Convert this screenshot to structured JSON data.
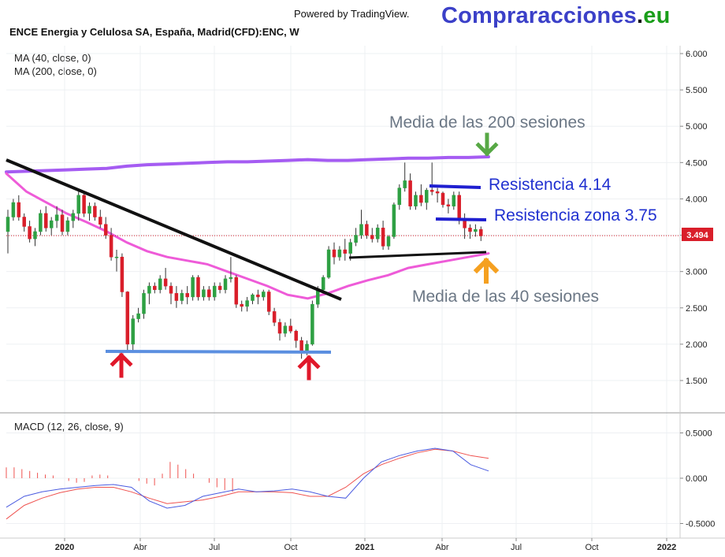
{
  "header": {
    "powered_by": "Powered by TradingView.",
    "brand_main": "Compraracciones",
    "brand_dot": ".",
    "brand_tld": "eu",
    "symbol_title": "ENCE Energia y Celulosa SA, España, Madrid(CFD):ENC, W"
  },
  "indicators": {
    "ma40_label": "MA (40, close, 0)",
    "ma200_label": "MA (200, close, 0)",
    "macd_label": "MACD (12, 26, close, 9)"
  },
  "annotations": {
    "ma200_text": "Media de las 200 sesiones",
    "ma40_text": "Media de las 40 sesiones",
    "res1_text": "Resistencia 4.14",
    "res2_text": "Resistencia zona 3.75"
  },
  "colors": {
    "up": "#2ea043",
    "down": "#d91e2a",
    "ma200": "#a55cf2",
    "ma40": "#ee5bd8",
    "macd_line": "#4a5be0",
    "signal_line": "#ef5350",
    "histogram": "#ef5350",
    "support": "#5b8fe0",
    "resistance": "#1f1fd0",
    "trendline": "#111111",
    "arrow_red": "#e0182a",
    "arrow_green": "#57a845",
    "arrow_orange": "#f5a020",
    "annotation_gray": "#6b7785",
    "annotation_blue": "#2030d0"
  },
  "chart_data": [
    {
      "type": "candlestick",
      "title": "ENCE Energia y Celulosa SA, España, Madrid(CFD):ENC, W",
      "last_price": "3.494",
      "x_tick_labels": [
        "2020",
        "Abr",
        "Jul",
        "Oct",
        "2021",
        "Abr",
        "Jul",
        "Oct",
        "2022"
      ],
      "y_tick_labels": [
        "6.000",
        "5.500",
        "5.000",
        "4.500",
        "4.000",
        "3.500",
        "3.000",
        "2.500",
        "2.000",
        "1.500"
      ],
      "ylim": [
        1.0,
        6.1
      ],
      "grid": true,
      "candles": [
        [
          3.55,
          3.85,
          3.25,
          3.75
        ],
        [
          3.75,
          4.0,
          3.7,
          3.95
        ],
        [
          3.95,
          4.05,
          3.7,
          3.75
        ],
        [
          3.75,
          3.8,
          3.55,
          3.62
        ],
        [
          3.62,
          3.7,
          3.4,
          3.45
        ],
        [
          3.45,
          3.6,
          3.35,
          3.55
        ],
        [
          3.55,
          3.85,
          3.5,
          3.8
        ],
        [
          3.8,
          3.9,
          3.55,
          3.6
        ],
        [
          3.6,
          3.75,
          3.5,
          3.7
        ],
        [
          3.7,
          3.9,
          3.6,
          3.78
        ],
        [
          3.78,
          3.85,
          3.5,
          3.55
        ],
        [
          3.55,
          3.75,
          3.5,
          3.7
        ],
        [
          3.7,
          3.85,
          3.6,
          3.8
        ],
        [
          3.8,
          4.1,
          3.7,
          4.05
        ],
        [
          4.05,
          4.1,
          3.75,
          3.8
        ],
        [
          3.8,
          3.95,
          3.7,
          3.9
        ],
        [
          3.9,
          3.95,
          3.7,
          3.75
        ],
        [
          3.75,
          3.85,
          3.6,
          3.65
        ],
        [
          3.65,
          3.75,
          3.45,
          3.5
        ],
        [
          3.5,
          3.6,
          3.15,
          3.2
        ],
        [
          3.2,
          3.3,
          3.0,
          3.2
        ],
        [
          3.2,
          3.25,
          2.65,
          2.72
        ],
        [
          2.72,
          2.73,
          1.9,
          2.0
        ],
        [
          2.0,
          2.4,
          1.9,
          2.35
        ],
        [
          2.35,
          2.5,
          2.3,
          2.42
        ],
        [
          2.42,
          2.75,
          2.35,
          2.7
        ],
        [
          2.7,
          2.85,
          2.55,
          2.8
        ],
        [
          2.8,
          2.85,
          2.7,
          2.75
        ],
        [
          2.75,
          2.95,
          2.7,
          2.9
        ],
        [
          2.9,
          3.05,
          2.75,
          2.8
        ],
        [
          2.8,
          2.85,
          2.55,
          2.7
        ],
        [
          2.7,
          2.8,
          2.5,
          2.6
        ],
        [
          2.6,
          2.75,
          2.55,
          2.7
        ],
        [
          2.7,
          2.8,
          2.55,
          2.65
        ],
        [
          2.65,
          2.95,
          2.6,
          2.92
        ],
        [
          2.92,
          2.95,
          2.6,
          2.65
        ],
        [
          2.65,
          2.8,
          2.6,
          2.75
        ],
        [
          2.75,
          2.8,
          2.6,
          2.65
        ],
        [
          2.65,
          2.85,
          2.6,
          2.8
        ],
        [
          2.8,
          2.85,
          2.7,
          2.75
        ],
        [
          2.75,
          2.95,
          2.7,
          2.9
        ],
        [
          2.9,
          3.2,
          2.85,
          2.92
        ],
        [
          2.92,
          2.95,
          2.5,
          2.55
        ],
        [
          2.55,
          2.6,
          2.45,
          2.52
        ],
        [
          2.52,
          2.65,
          2.45,
          2.6
        ],
        [
          2.6,
          2.7,
          2.55,
          2.68
        ],
        [
          2.68,
          2.75,
          2.55,
          2.65
        ],
        [
          2.65,
          2.75,
          2.6,
          2.72
        ],
        [
          2.72,
          2.75,
          2.4,
          2.45
        ],
        [
          2.45,
          2.5,
          2.25,
          2.3
        ],
        [
          2.3,
          2.35,
          2.05,
          2.15
        ],
        [
          2.15,
          2.3,
          2.1,
          2.25
        ],
        [
          2.25,
          2.35,
          2.15,
          2.18
        ],
        [
          2.18,
          2.2,
          1.95,
          2.05
        ],
        [
          2.05,
          2.1,
          1.8,
          1.88
        ],
        [
          1.88,
          2.05,
          1.85,
          2.0
        ],
        [
          2.0,
          2.6,
          1.98,
          2.55
        ],
        [
          2.55,
          2.8,
          2.5,
          2.75
        ],
        [
          2.75,
          2.95,
          2.7,
          2.92
        ],
        [
          2.92,
          3.35,
          2.9,
          3.3
        ],
        [
          3.3,
          3.4,
          3.1,
          3.2
        ],
        [
          3.2,
          3.35,
          3.15,
          3.3
        ],
        [
          3.3,
          3.45,
          3.15,
          3.25
        ],
        [
          3.25,
          3.45,
          3.15,
          3.4
        ],
        [
          3.4,
          3.6,
          3.35,
          3.5
        ],
        [
          3.5,
          3.85,
          3.45,
          3.65
        ],
        [
          3.65,
          3.7,
          3.45,
          3.5
        ],
        [
          3.5,
          3.6,
          3.4,
          3.45
        ],
        [
          3.45,
          3.65,
          3.4,
          3.6
        ],
        [
          3.6,
          3.7,
          3.3,
          3.35
        ],
        [
          3.35,
          3.5,
          3.3,
          3.48
        ],
        [
          3.48,
          3.95,
          3.45,
          3.92
        ],
        [
          3.92,
          4.2,
          3.85,
          4.15
        ],
        [
          4.15,
          4.5,
          4.1,
          4.25
        ],
        [
          4.25,
          4.35,
          3.85,
          3.9
        ],
        [
          3.9,
          4.1,
          3.85,
          4.05
        ],
        [
          4.05,
          4.2,
          3.9,
          3.95
        ],
        [
          3.95,
          4.15,
          3.85,
          4.12
        ],
        [
          4.12,
          4.5,
          4.05,
          4.1
        ],
        [
          4.1,
          4.15,
          3.95,
          4.08
        ],
        [
          4.08,
          4.1,
          3.88,
          3.92
        ],
        [
          3.92,
          4.0,
          3.8,
          3.9
        ],
        [
          3.9,
          4.1,
          3.85,
          4.05
        ],
        [
          4.05,
          4.1,
          3.65,
          3.7
        ],
        [
          3.7,
          3.8,
          3.45,
          3.6
        ],
        [
          3.6,
          3.65,
          3.45,
          3.55
        ],
        [
          3.55,
          3.65,
          3.48,
          3.58
        ],
        [
          3.58,
          3.62,
          3.42,
          3.49
        ]
      ],
      "ma200": [
        4.37,
        4.38,
        4.39,
        4.4,
        4.41,
        4.42,
        4.45,
        4.47,
        4.48,
        4.49,
        4.5,
        4.51,
        4.51,
        4.52,
        4.53,
        4.54,
        4.53,
        4.53,
        4.54,
        4.55,
        4.56,
        4.56,
        4.57,
        4.57,
        4.58
      ],
      "ma40": [
        4.35,
        4.1,
        3.95,
        3.8,
        3.68,
        3.55,
        3.4,
        3.28,
        3.2,
        3.15,
        3.1,
        3.0,
        2.9,
        2.8,
        2.68,
        2.63,
        2.7,
        2.8,
        2.88,
        2.95,
        3.05,
        3.1,
        3.15,
        3.2,
        3.25
      ]
    },
    {
      "type": "macd",
      "title": "MACD (12, 26, close, 9)",
      "y_tick_labels": [
        "0.5000",
        "0.000",
        "-0.5000"
      ],
      "ylim": [
        -0.6,
        0.6
      ],
      "macd": [
        -0.32,
        -0.2,
        -0.15,
        -0.12,
        -0.1,
        -0.08,
        -0.07,
        -0.1,
        -0.25,
        -0.33,
        -0.3,
        -0.2,
        -0.16,
        -0.12,
        -0.15,
        -0.14,
        -0.12,
        -0.15,
        -0.2,
        -0.22,
        0.0,
        0.18,
        0.25,
        0.3,
        0.33,
        0.3,
        0.15,
        0.08
      ],
      "signal": [
        -0.45,
        -0.3,
        -0.22,
        -0.16,
        -0.12,
        -0.1,
        -0.1,
        -0.15,
        -0.22,
        -0.28,
        -0.26,
        -0.24,
        -0.2,
        -0.15,
        -0.15,
        -0.15,
        -0.16,
        -0.2,
        -0.2,
        -0.1,
        0.05,
        0.15,
        0.22,
        0.28,
        0.32,
        0.3,
        0.25,
        0.22
      ],
      "histogram": [
        0.12,
        0.12,
        0.1,
        0.08,
        0.06,
        0.04,
        0.03,
        0.0,
        -0.03,
        -0.05,
        -0.04,
        0.03,
        0.04,
        0.03,
        0.0,
        0.0,
        0.0,
        -0.03,
        -0.06,
        -0.08,
        0.05,
        0.18,
        0.15,
        0.1,
        0.05,
        0.0,
        -0.05,
        -0.1,
        -0.13,
        -0.15
      ]
    }
  ]
}
